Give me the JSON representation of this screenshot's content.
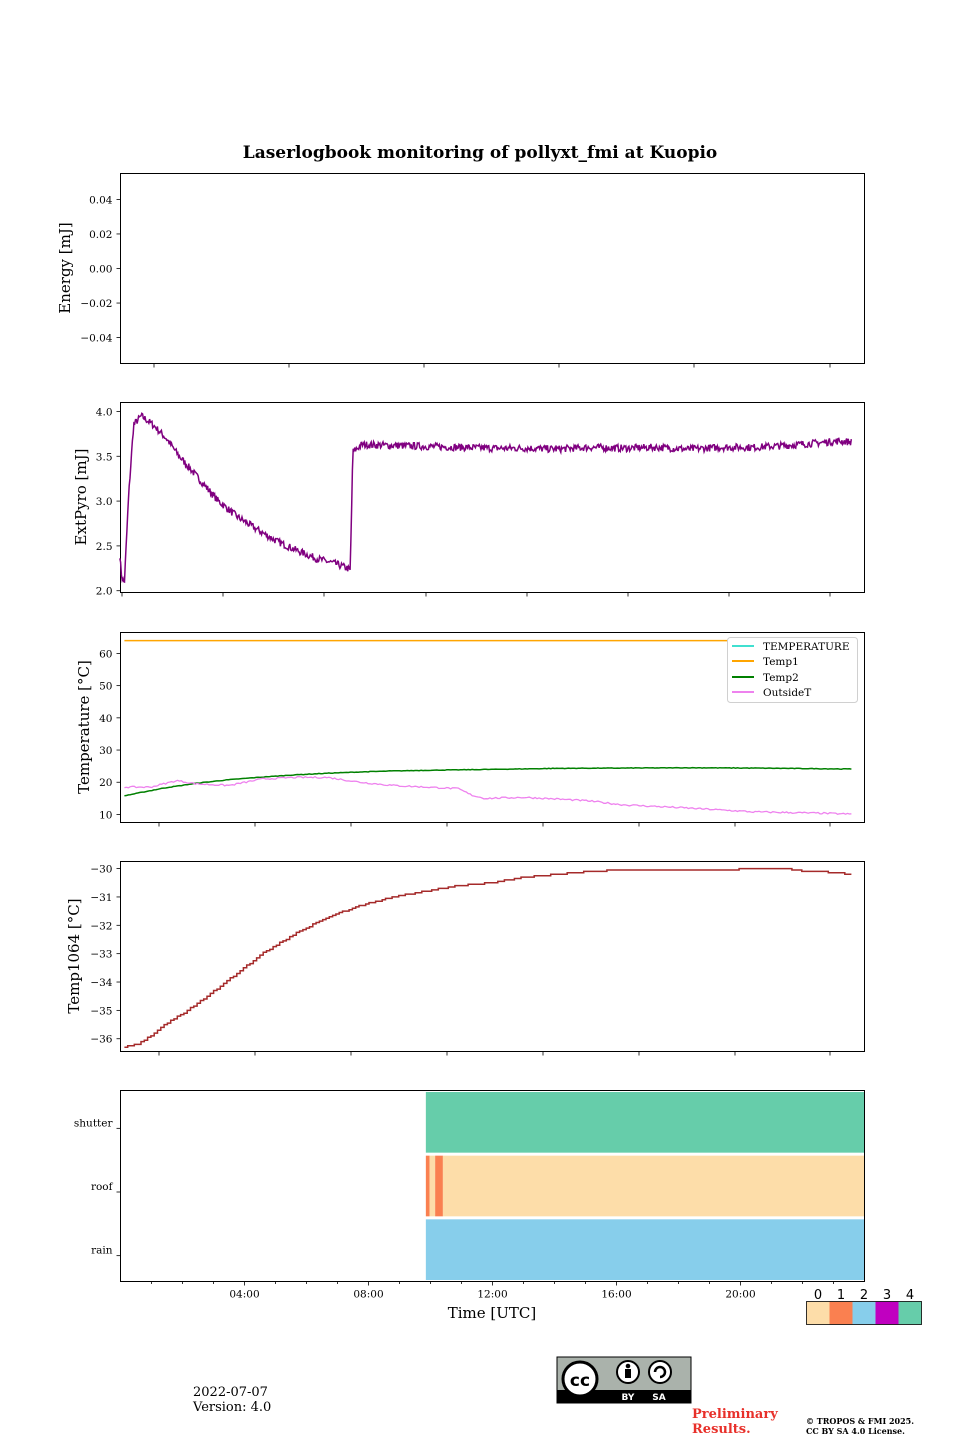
{
  "title": "Laserlogbook monitoring of pollyxt_fmi at Kuopio",
  "footer": {
    "date": "2022-07-07",
    "version": "Version: 4.0",
    "preliminary_line1": "Preliminary",
    "preliminary_line2": "Results.",
    "copyright_line1": "© TROPOS & FMI 2025.",
    "copyright_line2": "CC BY SA 4.0 License.",
    "license_badge": {
      "cc": "cc",
      "by": "BY",
      "sa": "SA"
    }
  },
  "colors": {
    "extpyro": "#800080",
    "temperature": "#40e0d0",
    "temp1": "#ffa500",
    "temp2": "#008000",
    "outsideT": "#ee82ee",
    "temp1064": "#a52a2a",
    "status0": "#fddda9",
    "status1": "#fa8050",
    "status2": "#87ceeb",
    "status3": "#c000c0",
    "status4": "#66cdaa",
    "preliminary": "#e8302a"
  },
  "chart_data": [
    {
      "id": "energy",
      "type": "line",
      "ylabel": "Energy [mJ]",
      "ylim": [
        -0.055,
        0.055
      ],
      "yticks": [
        0.04,
        0.02,
        0.0,
        -0.02,
        -0.04
      ],
      "ytick_labels": [
        "0.04",
        "0.02",
        "0.00",
        "−0.02",
        "−0.04"
      ],
      "series": []
    },
    {
      "id": "extpyro",
      "type": "line",
      "ylabel": "ExtPyro [mJ]",
      "xlim_hours": [
        0.3,
        11.7
      ],
      "ylim": [
        1.98,
        4.1
      ],
      "yticks": [
        4.0,
        3.5,
        3.0,
        2.5,
        2.0
      ],
      "ytick_labels": [
        "4.0",
        "3.5",
        "3.0",
        "2.5",
        "2.0"
      ],
      "series": [
        {
          "name": "ExtPyro",
          "x": [
            0.29,
            0.3,
            0.32,
            0.36,
            0.42,
            0.5,
            0.62,
            0.8,
            1.0,
            1.2,
            1.5,
            1.8,
            2.1,
            2.4,
            2.7,
            3.0,
            3.3,
            3.6,
            3.78,
            3.82,
            3.86,
            4.0,
            4.5,
            5.0,
            5.5,
            6.0,
            6.5,
            7.0,
            7.5,
            8.0,
            8.5,
            9.0,
            9.5,
            10.0,
            10.5,
            11.0,
            11.3,
            11.5
          ],
          "y": [
            2.4,
            2.3,
            2.15,
            2.08,
            3.0,
            3.85,
            3.95,
            3.85,
            3.7,
            3.5,
            3.25,
            3.0,
            2.82,
            2.68,
            2.55,
            2.45,
            2.36,
            2.3,
            2.25,
            2.22,
            3.55,
            3.63,
            3.62,
            3.61,
            3.6,
            3.59,
            3.59,
            3.58,
            3.6,
            3.59,
            3.6,
            3.58,
            3.6,
            3.6,
            3.62,
            3.65,
            3.67,
            3.66
          ],
          "noise": 0.04
        }
      ]
    },
    {
      "id": "temperature",
      "type": "line",
      "ylabel": "Temperature [°C]",
      "xlim_hours": [
        0.34,
        11.7
      ],
      "ylim": [
        7.5,
        66.5
      ],
      "yticks": [
        60,
        50,
        40,
        30,
        20,
        10
      ],
      "ytick_labels": [
        "60",
        "50",
        "40",
        "30",
        "20",
        "10"
      ],
      "legend": [
        "TEMPERATURE",
        "Temp1",
        "Temp2",
        "OutsideT"
      ],
      "legend_position": "top-right",
      "series": [
        {
          "name": "TEMPERATURE",
          "x": [],
          "y": []
        },
        {
          "name": "Temp1",
          "x": [
            0.4,
            11.5
          ],
          "y": [
            64,
            64
          ]
        },
        {
          "name": "Temp2",
          "x": [
            0.4,
            1.0,
            1.5,
            2.0,
            2.5,
            3.0,
            3.5,
            4.0,
            4.5,
            5.0,
            6.0,
            7.0,
            8.0,
            9.0,
            10.0,
            11.0,
            11.5
          ],
          "y": [
            15.8,
            18.2,
            19.7,
            20.8,
            21.6,
            22.3,
            22.8,
            23.2,
            23.5,
            23.7,
            24.0,
            24.3,
            24.4,
            24.5,
            24.4,
            24.2,
            24.1
          ]
        },
        {
          "name": "OutsideT",
          "x": [
            0.4,
            0.8,
            1.2,
            1.5,
            2.0,
            2.5,
            3.0,
            3.5,
            4.0,
            4.5,
            5.0,
            5.5,
            5.7,
            5.9,
            6.5,
            7.0,
            7.5,
            8.0,
            9.0,
            10.0,
            11.0,
            11.5
          ],
          "y": [
            18.5,
            18.5,
            20.5,
            19.5,
            19,
            21,
            21.5,
            21.5,
            20,
            19,
            18.5,
            18,
            16,
            15,
            15.3,
            14.8,
            14.2,
            13,
            12,
            10.8,
            10.4,
            10.1
          ]
        }
      ]
    },
    {
      "id": "temp1064",
      "type": "line",
      "ylabel": "Temp1064 [°C]",
      "xlim_hours": [
        0.34,
        11.7
      ],
      "ylim": [
        -36.45,
        -29.75
      ],
      "yticks": [
        -30,
        -31,
        -32,
        -33,
        -34,
        -35,
        -36
      ],
      "ytick_labels": [
        "−30",
        "−31",
        "−32",
        "−33",
        "−34",
        "−35",
        "−36"
      ],
      "series": [
        {
          "name": "Temp1064",
          "x": [
            0.4,
            0.6,
            0.8,
            1.0,
            1.3,
            1.6,
            2.0,
            2.5,
            3.0,
            3.5,
            4.0,
            4.5,
            5.0,
            5.5,
            6.0,
            6.5,
            7.0,
            7.5,
            8.0,
            8.5,
            9.0,
            9.5,
            10.0,
            10.5,
            10.8,
            11.0,
            11.5
          ],
          "y": [
            -36.3,
            -36.2,
            -35.9,
            -35.5,
            -35.1,
            -34.6,
            -33.9,
            -33.0,
            -32.3,
            -31.7,
            -31.3,
            -31.0,
            -30.8,
            -30.6,
            -30.5,
            -30.3,
            -30.2,
            -30.1,
            -30.05,
            -30.05,
            -30.05,
            -30.05,
            -30.0,
            -30.0,
            -30.1,
            -30.1,
            -30.2
          ]
        }
      ]
    },
    {
      "id": "status",
      "type": "heatmap",
      "xlabel": "Time [UTC]",
      "rows": [
        "shutter",
        "roof",
        "rain"
      ],
      "xlim_hours": [
        0,
        24
      ],
      "xtick_labels": [
        "04:00",
        "08:00",
        "12:00",
        "16:00",
        "20:00"
      ],
      "xticks_hours": [
        4,
        8,
        12,
        16,
        20
      ],
      "segments": [
        {
          "row": "shutter",
          "start": 9.85,
          "end": 24,
          "state": 4
        },
        {
          "row": "roof",
          "start": 9.85,
          "end": 9.97,
          "state": 1
        },
        {
          "row": "roof",
          "start": 9.97,
          "end": 10.15,
          "state": 0
        },
        {
          "row": "roof",
          "start": 10.15,
          "end": 10.4,
          "state": 1
        },
        {
          "row": "roof",
          "start": 10.4,
          "end": 24,
          "state": 0
        },
        {
          "row": "rain",
          "start": 9.85,
          "end": 24,
          "state": 2
        }
      ],
      "colorbar_labels": [
        "0",
        "1",
        "2",
        "3",
        "4"
      ]
    }
  ]
}
